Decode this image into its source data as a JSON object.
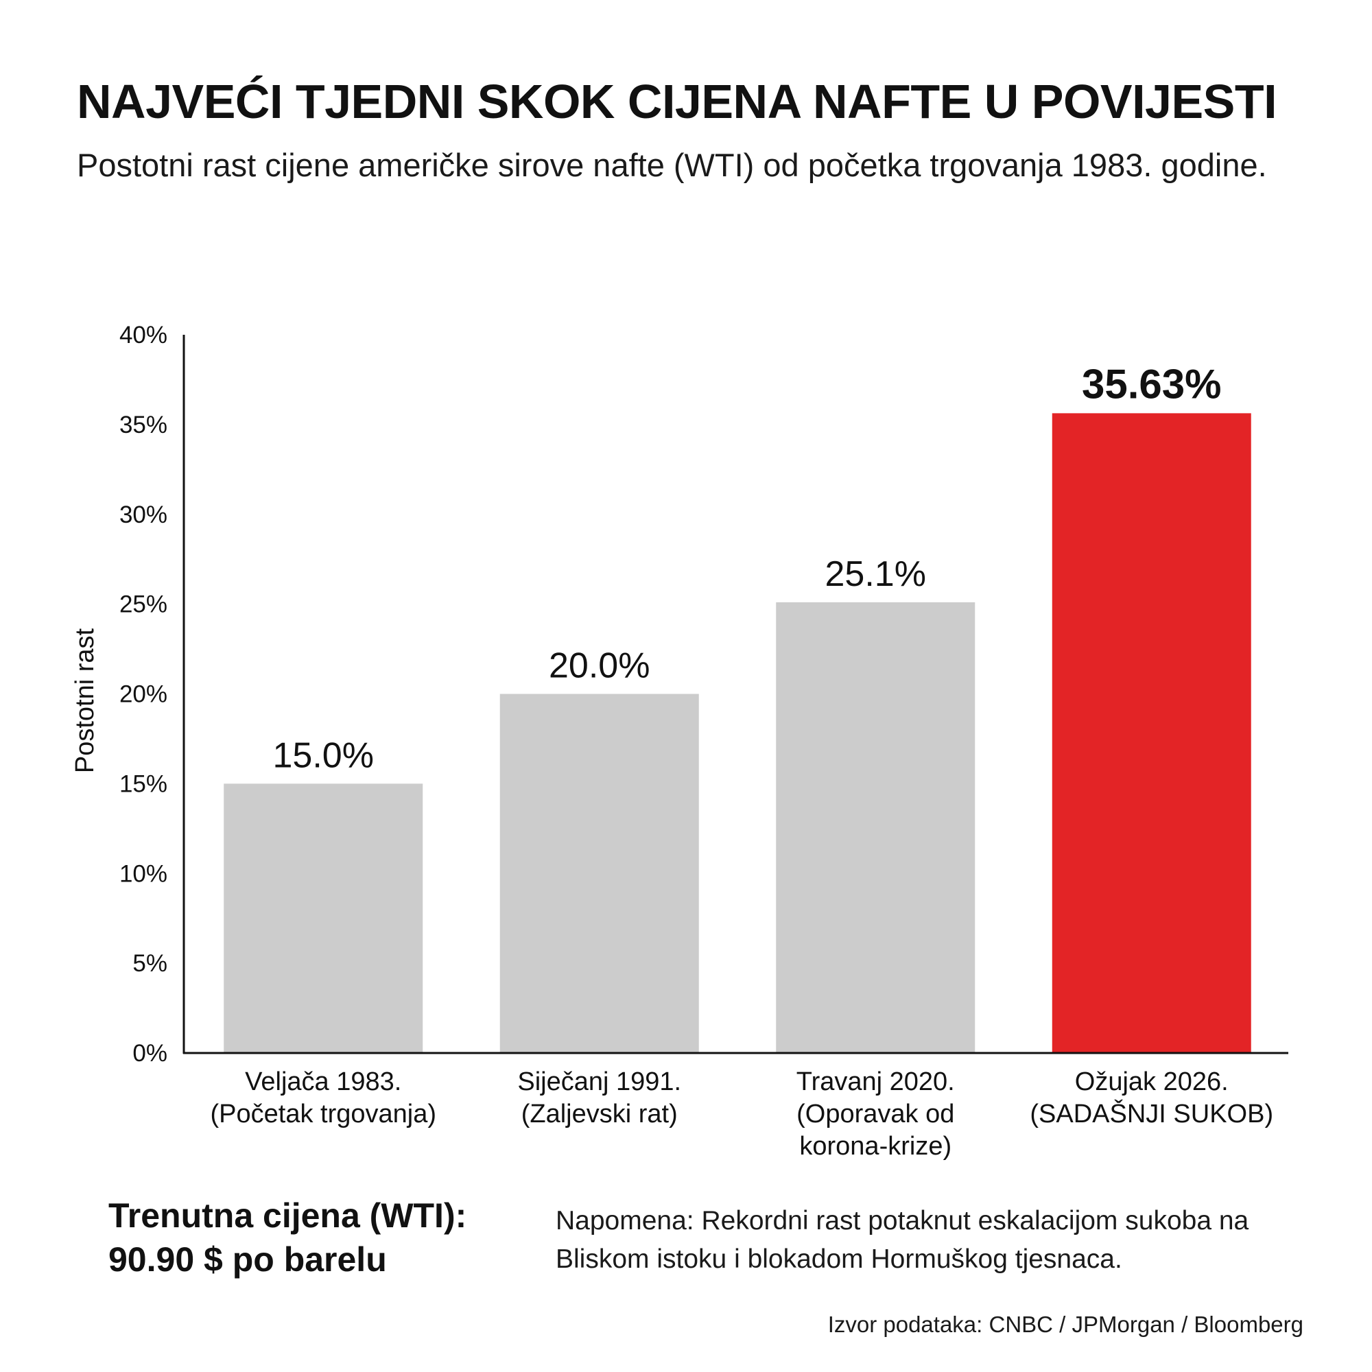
{
  "header": {
    "title": "NAJVEĆI TJEDNI SKOK CIJENA NAFTE U POVIJESTI",
    "subtitle": "Postotni rast cijene američke sirove nafte (WTI) od početka trgovanja 1983. godine."
  },
  "chart_data": {
    "type": "bar",
    "categories": [
      [
        "Veljača 1983.",
        "(Početak trgovanja)"
      ],
      [
        "Siječanj 1991.",
        "(Zaljevski rat)"
      ],
      [
        "Travanj 2020.",
        "(Oporavak od",
        "korona-krize)"
      ],
      [
        "Ožujak 2026.",
        "(SADAŠNJI SUKOB)"
      ]
    ],
    "values": [
      15.0,
      20.0,
      25.1,
      35.63
    ],
    "value_labels": [
      "15.0%",
      "20.0%",
      "25.1%",
      "35.63%"
    ],
    "highlight_index": 3,
    "ylabel": "Postotni rast",
    "ylim": [
      0,
      40
    ],
    "yticks": [
      0,
      5,
      10,
      15,
      20,
      25,
      30,
      35,
      40
    ],
    "ytick_labels": [
      "0%",
      "5%",
      "10%",
      "15%",
      "20%",
      "25%",
      "30%",
      "35%",
      "40%"
    ],
    "grid": false,
    "colors": {
      "bar": "#cccccc",
      "highlight": "#e32426",
      "axis": "#111111"
    }
  },
  "footer": {
    "current_price_line1": "Trenutna cijena (WTI):",
    "current_price_line2": "90.90 $ po barelu",
    "note": "Napomena: Rekordni rast potaknut eskalacijom sukoba na Bliskom istoku i blokadom Hormuškog tjesnaca.",
    "source": "Izvor podataka: CNBC / JPMorgan / Bloomberg"
  }
}
